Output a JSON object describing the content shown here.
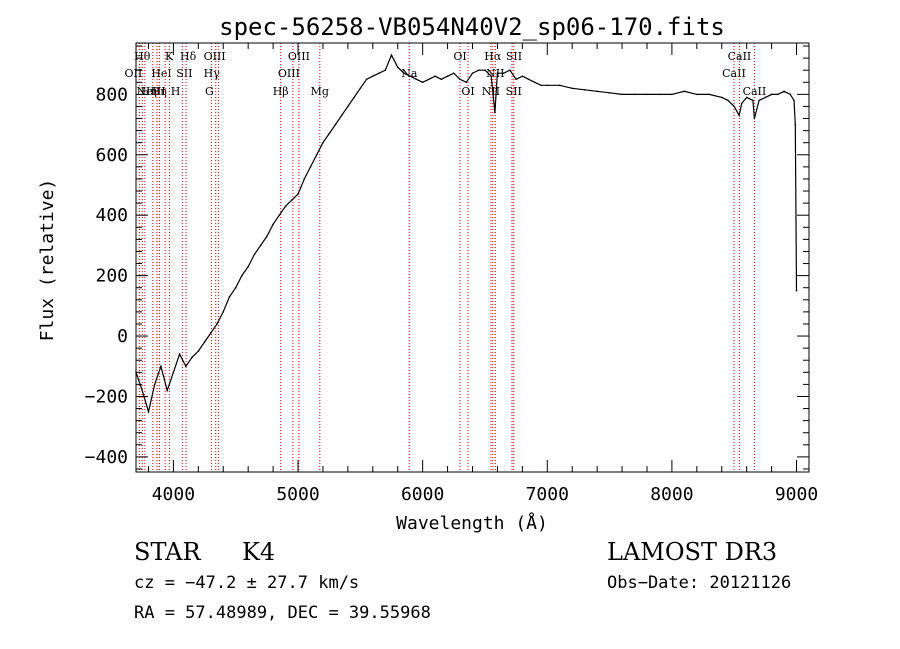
{
  "chart_data": {
    "type": "line",
    "title": "spec-56258-VB054N40V2_sp06-170.fits",
    "xlabel": "Wavelength (Å)",
    "ylabel": "Flux (relative)",
    "xlim": [
      3700,
      9100
    ],
    "ylim": [
      -450,
      970
    ],
    "x_ticks": [
      4000,
      5000,
      6000,
      7000,
      8000,
      9000
    ],
    "y_ticks": [
      -400,
      -200,
      0,
      200,
      400,
      600,
      800
    ],
    "series": [
      {
        "name": "spectrum",
        "x": [
          3700,
          3750,
          3800,
          3850,
          3900,
          3950,
          4000,
          4050,
          4100,
          4150,
          4200,
          4250,
          4300,
          4350,
          4400,
          4450,
          4500,
          4550,
          4600,
          4650,
          4700,
          4750,
          4800,
          4850,
          4900,
          4950,
          5000,
          5050,
          5100,
          5150,
          5200,
          5250,
          5300,
          5350,
          5400,
          5450,
          5500,
          5550,
          5600,
          5650,
          5700,
          5750,
          5800,
          5850,
          5900,
          5950,
          6000,
          6050,
          6100,
          6150,
          6200,
          6250,
          6300,
          6350,
          6400,
          6450,
          6500,
          6550,
          6580,
          6600,
          6650,
          6700,
          6750,
          6800,
          6850,
          6900,
          6950,
          7000,
          7100,
          7200,
          7300,
          7400,
          7500,
          7600,
          7700,
          7800,
          7900,
          8000,
          8100,
          8200,
          8300,
          8400,
          8450,
          8500,
          8540,
          8560,
          8600,
          8650,
          8662,
          8700,
          8750,
          8800,
          8850,
          8900,
          8950,
          8980,
          8990,
          9000
        ],
        "y": [
          -120,
          -180,
          -250,
          -160,
          -100,
          -180,
          -120,
          -60,
          -100,
          -70,
          -50,
          -20,
          10,
          40,
          80,
          130,
          160,
          200,
          230,
          270,
          300,
          330,
          370,
          400,
          430,
          450,
          470,
          520,
          560,
          600,
          640,
          670,
          700,
          730,
          760,
          790,
          820,
          850,
          860,
          870,
          880,
          930,
          890,
          870,
          860,
          850,
          840,
          850,
          860,
          850,
          860,
          870,
          850,
          840,
          870,
          880,
          880,
          860,
          740,
          870,
          870,
          880,
          850,
          860,
          850,
          840,
          830,
          830,
          830,
          820,
          815,
          810,
          805,
          800,
          800,
          800,
          800,
          800,
          810,
          800,
          800,
          790,
          780,
          760,
          730,
          770,
          790,
          780,
          720,
          780,
          790,
          800,
          800,
          810,
          800,
          780,
          700,
          150
        ]
      }
    ],
    "lines": [
      {
        "wave": 3727,
        "label": "OII",
        "row": 1,
        "dx": -6
      },
      {
        "wave": 3750,
        "label": "Hθ",
        "row": 0,
        "dx": 0
      },
      {
        "wave": 3771,
        "label": "Hη",
        "row": 2,
        "dx": 4
      },
      {
        "wave": 3835,
        "label": "Hη",
        "row": 2,
        "dx": 6
      },
      {
        "wave": 3869,
        "label": "NeIII",
        "row": 2,
        "dx": -6
      },
      {
        "wave": 3889,
        "label": "HeI",
        "row": 1,
        "dx": 2
      },
      {
        "wave": 3934,
        "label": "K",
        "row": 0,
        "dx": 4
      },
      {
        "wave": 3969,
        "label": "H",
        "row": 2,
        "dx": 6
      },
      {
        "wave": 4072,
        "label": "SII",
        "row": 1,
        "dx": 2
      },
      {
        "wave": 4102,
        "label": "Hδ",
        "row": 0,
        "dx": 2
      },
      {
        "wave": 4305,
        "label": "G",
        "row": 2,
        "dx": -2
      },
      {
        "wave": 4340,
        "label": "Hγ",
        "row": 1,
        "dx": -4
      },
      {
        "wave": 4363,
        "label": "OIII",
        "row": 0,
        "dx": -4
      },
      {
        "wave": 4861,
        "label": "Hβ",
        "row": 2,
        "dx": 0
      },
      {
        "wave": 4959,
        "label": "OIII",
        "row": 1,
        "dx": -4
      },
      {
        "wave": 5007,
        "label": "OIII",
        "row": 0,
        "dx": 0
      },
      {
        "wave": 5175,
        "label": "Mg",
        "row": 2,
        "dx": 0
      },
      {
        "wave": 5893,
        "label": "Na",
        "row": 1,
        "dx": 0
      },
      {
        "wave": 6300,
        "label": "OI",
        "row": 0,
        "dx": 0
      },
      {
        "wave": 6364,
        "label": "OI",
        "row": 2,
        "dx": 0
      },
      {
        "wave": 6548,
        "label": "NII",
        "row": 2,
        "dx": 0
      },
      {
        "wave": 6563,
        "label": "Hα",
        "row": 0,
        "dx": 0
      },
      {
        "wave": 6583,
        "label": "NII",
        "row": 1,
        "dx": 0
      },
      {
        "wave": 6717,
        "label": "SII",
        "row": 0,
        "dx": 2
      },
      {
        "wave": 6731,
        "label": "SII",
        "row": 2,
        "dx": 0
      },
      {
        "wave": 8498,
        "label": "CaII",
        "row": 1,
        "dx": 0
      },
      {
        "wave": 8542,
        "label": "CaII",
        "row": 0,
        "dx": 0
      },
      {
        "wave": 8662,
        "label": "CaII",
        "row": 2,
        "dx": 0
      }
    ]
  },
  "info": {
    "object_type": "STAR",
    "subclass": "K4",
    "survey": "LAMOST DR3",
    "cz": "cz = −47.2 ± 27.7 km/s",
    "obs_date": "Obs−Date: 20121126",
    "coords": "RA =  57.48989, DEC =  39.55968"
  },
  "colors": {
    "axis": "#000000",
    "spectrum": "#000000",
    "line_marker": "#cc0000"
  }
}
